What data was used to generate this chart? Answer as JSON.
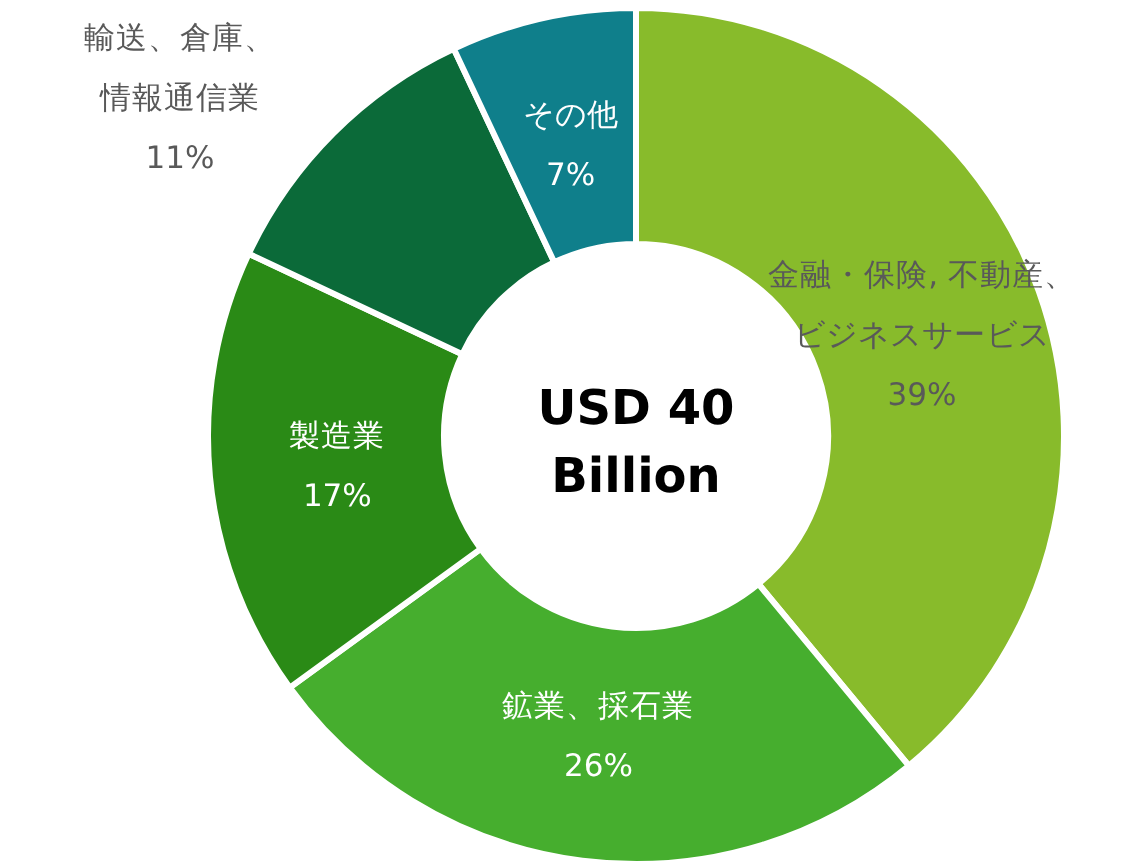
{
  "chart_data": {
    "type": "donut",
    "categories": [
      "金融・保険, 不動産、ビジネスサービス",
      "鉱業、採石業",
      "製造業",
      "輸送、倉庫、情報通信業",
      "その他"
    ],
    "values": [
      39,
      26,
      17,
      11,
      7
    ],
    "colors": [
      "#88bb2b",
      "#46ae2e",
      "#2a8a16",
      "#0b6a39",
      "#0f7f8b"
    ],
    "value_labels": [
      "39%",
      "26%",
      "17%",
      "11%",
      "7%"
    ],
    "annotations": [
      "USD 40 Billion"
    ]
  }
}
